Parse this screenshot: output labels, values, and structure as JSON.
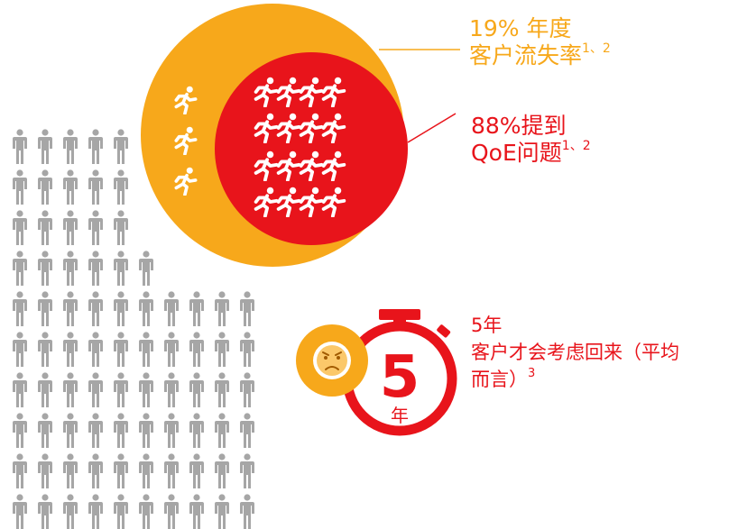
{
  "annotations": [
    {
      "lines": [
        "19% 年度",
        "客户流失率"
      ],
      "superscript": "1、2"
    },
    {
      "lines": [
        "88%提到",
        "QoE问题"
      ],
      "superscript": "1、2"
    },
    {
      "lines": [
        "5年",
        "客户才会考虑回来（平均",
        "而言）"
      ],
      "superscript": "3"
    }
  ],
  "timer": {
    "number": "5",
    "unit": "年"
  }
}
